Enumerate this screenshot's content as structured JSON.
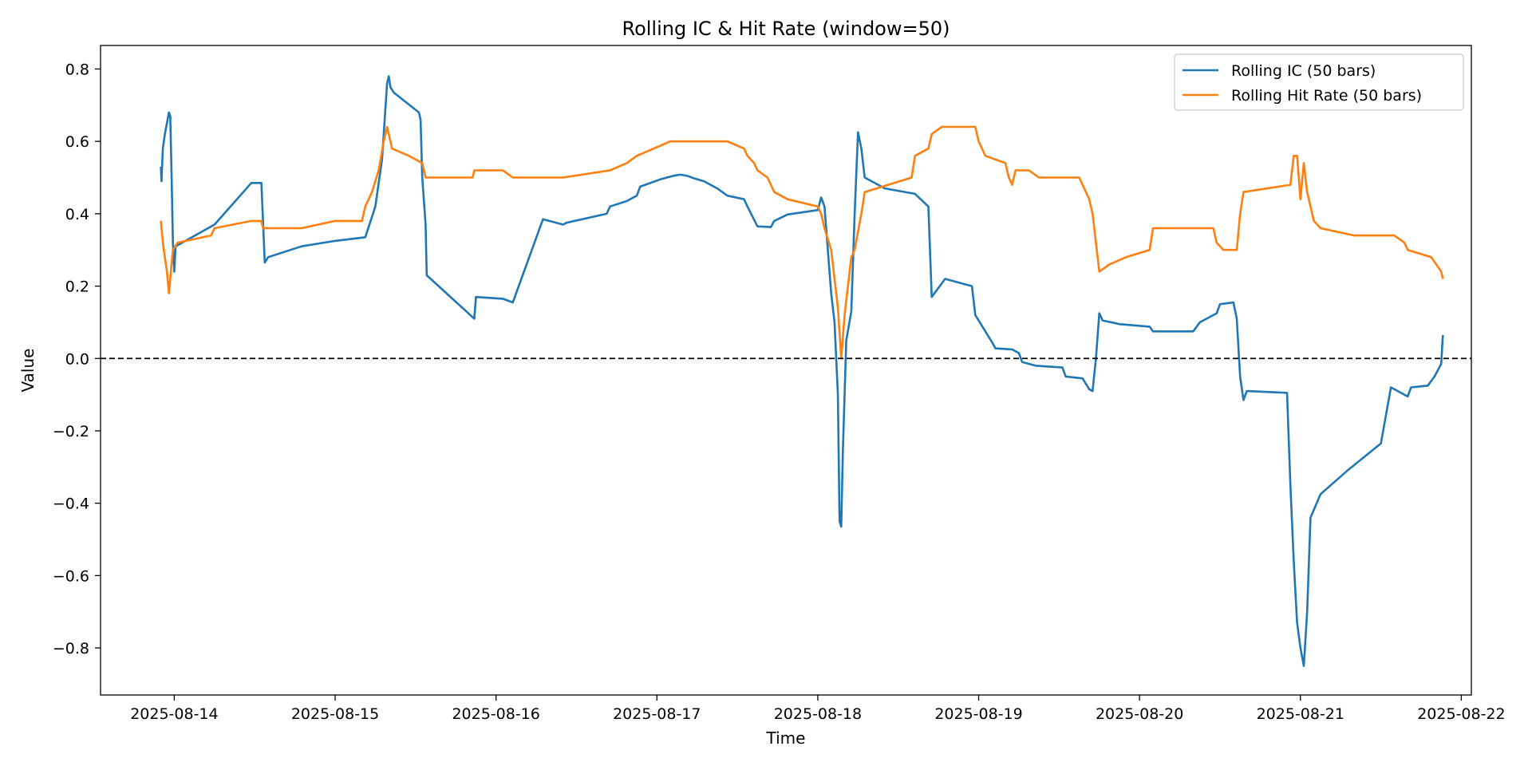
{
  "chart_data": {
    "type": "line",
    "title": "Rolling IC & Hit Rate (window=50)",
    "xlabel": "Time",
    "ylabel": "Value",
    "x_range": [
      "2025-08-13T13:00",
      "2025-08-22T01:30"
    ],
    "ylim": [
      -0.93,
      0.865
    ],
    "x_ticks": [
      "2025-08-14",
      "2025-08-15",
      "2025-08-16",
      "2025-08-17",
      "2025-08-18",
      "2025-08-19",
      "2025-08-20",
      "2025-08-21",
      "2025-08-22"
    ],
    "y_ticks": [
      -0.8,
      -0.6,
      -0.4,
      -0.2,
      0.0,
      0.2,
      0.4,
      0.6,
      0.8
    ],
    "y_tick_labels": [
      "−0.8",
      "−0.6",
      "−0.4",
      "−0.2",
      "0.0",
      "0.2",
      "0.4",
      "0.6",
      "0.8"
    ],
    "grid": false,
    "legend_position": "top-right",
    "reference_line": {
      "y": 0,
      "style": "dashed",
      "color": "#000000"
    },
    "series": [
      {
        "name": "Rolling IC (50 bars)",
        "color": "#1f77b4",
        "points": [
          [
            "2025-08-13T22:00",
            0.53
          ],
          [
            "2025-08-13T22:06",
            0.49
          ],
          [
            "2025-08-13T22:18",
            0.58
          ],
          [
            "2025-08-13T22:36",
            0.62
          ],
          [
            "2025-08-13T23:00",
            0.66
          ],
          [
            "2025-08-13T23:12",
            0.68
          ],
          [
            "2025-08-13T23:24",
            0.67
          ],
          [
            "2025-08-13T23:36",
            0.5
          ],
          [
            "2025-08-13T23:48",
            0.32
          ],
          [
            "2025-08-14T00:00",
            0.24
          ],
          [
            "2025-08-14T00:12",
            0.31
          ],
          [
            "2025-08-14T06:00",
            0.37
          ],
          [
            "2025-08-14T11:30",
            0.485
          ],
          [
            "2025-08-14T13:00",
            0.485
          ],
          [
            "2025-08-14T13:30",
            0.265
          ],
          [
            "2025-08-14T14:00",
            0.28
          ],
          [
            "2025-08-14T19:00",
            0.31
          ],
          [
            "2025-08-15T00:00",
            0.325
          ],
          [
            "2025-08-15T04:30",
            0.335
          ],
          [
            "2025-08-15T06:00",
            0.42
          ],
          [
            "2025-08-15T07:00",
            0.55
          ],
          [
            "2025-08-15T07:45",
            0.76
          ],
          [
            "2025-08-15T08:00",
            0.78
          ],
          [
            "2025-08-15T08:15",
            0.75
          ],
          [
            "2025-08-15T08:45",
            0.735
          ],
          [
            "2025-08-15T12:30",
            0.68
          ],
          [
            "2025-08-15T12:45",
            0.66
          ],
          [
            "2025-08-15T13:00",
            0.5
          ],
          [
            "2025-08-15T13:30",
            0.37
          ],
          [
            "2025-08-15T13:40",
            0.23
          ],
          [
            "2025-08-15T20:45",
            0.11
          ],
          [
            "2025-08-15T21:00",
            0.17
          ],
          [
            "2025-08-16T01:00",
            0.165
          ],
          [
            "2025-08-16T02:30",
            0.155
          ],
          [
            "2025-08-16T07:00",
            0.385
          ],
          [
            "2025-08-16T10:00",
            0.37
          ],
          [
            "2025-08-16T10:30",
            0.375
          ],
          [
            "2025-08-16T16:30",
            0.4
          ],
          [
            "2025-08-16T17:00",
            0.42
          ],
          [
            "2025-08-16T19:30",
            0.435
          ],
          [
            "2025-08-16T21:00",
            0.45
          ],
          [
            "2025-08-16T21:30",
            0.475
          ],
          [
            "2025-08-17T00:30",
            0.495
          ],
          [
            "2025-08-17T02:30",
            0.505
          ],
          [
            "2025-08-17T03:30",
            0.508
          ],
          [
            "2025-08-17T04:30",
            0.505
          ],
          [
            "2025-08-17T05:30",
            0.498
          ],
          [
            "2025-08-17T07:00",
            0.49
          ],
          [
            "2025-08-17T09:00",
            0.47
          ],
          [
            "2025-08-17T10:30",
            0.45
          ],
          [
            "2025-08-17T13:00",
            0.44
          ],
          [
            "2025-08-17T13:30",
            0.42
          ],
          [
            "2025-08-17T15:00",
            0.365
          ],
          [
            "2025-08-17T17:00",
            0.363
          ],
          [
            "2025-08-17T17:30",
            0.38
          ],
          [
            "2025-08-17T19:30",
            0.398
          ],
          [
            "2025-08-18T00:00",
            0.41
          ],
          [
            "2025-08-18T00:30",
            0.445
          ],
          [
            "2025-08-18T01:00",
            0.42
          ],
          [
            "2025-08-18T01:30",
            0.3
          ],
          [
            "2025-08-18T02:00",
            0.18
          ],
          [
            "2025-08-18T02:30",
            0.1
          ],
          [
            "2025-08-18T03:00",
            -0.1
          ],
          [
            "2025-08-18T03:15",
            -0.45
          ],
          [
            "2025-08-18T03:30",
            -0.465
          ],
          [
            "2025-08-18T03:45",
            -0.25
          ],
          [
            "2025-08-18T04:15",
            0.05
          ],
          [
            "2025-08-18T05:00",
            0.13
          ],
          [
            "2025-08-18T05:30",
            0.4
          ],
          [
            "2025-08-18T06:00",
            0.625
          ],
          [
            "2025-08-18T06:30",
            0.58
          ],
          [
            "2025-08-18T07:00",
            0.5
          ],
          [
            "2025-08-18T10:00",
            0.47
          ],
          [
            "2025-08-18T14:30",
            0.455
          ],
          [
            "2025-08-18T16:30",
            0.42
          ],
          [
            "2025-08-18T17:00",
            0.17
          ],
          [
            "2025-08-18T19:00",
            0.22
          ],
          [
            "2025-08-18T23:00",
            0.2
          ],
          [
            "2025-08-18T23:30",
            0.12
          ],
          [
            "2025-08-19T01:00",
            0.075
          ],
          [
            "2025-08-19T02:00",
            0.045
          ],
          [
            "2025-08-19T02:30",
            0.028
          ],
          [
            "2025-08-19T05:00",
            0.025
          ],
          [
            "2025-08-19T06:00",
            0.015
          ],
          [
            "2025-08-19T06:30",
            -0.01
          ],
          [
            "2025-08-19T08:30",
            -0.02
          ],
          [
            "2025-08-19T12:30",
            -0.025
          ],
          [
            "2025-08-19T13:00",
            -0.05
          ],
          [
            "2025-08-19T15:30",
            -0.055
          ],
          [
            "2025-08-19T16:30",
            -0.085
          ],
          [
            "2025-08-19T17:00",
            -0.09
          ],
          [
            "2025-08-19T17:30",
            0.0
          ],
          [
            "2025-08-19T18:00",
            0.125
          ],
          [
            "2025-08-19T18:30",
            0.105
          ],
          [
            "2025-08-19T21:00",
            0.095
          ],
          [
            "2025-08-20T01:30",
            0.088
          ],
          [
            "2025-08-20T02:00",
            0.075
          ],
          [
            "2025-08-20T08:00",
            0.075
          ],
          [
            "2025-08-20T09:00",
            0.1
          ],
          [
            "2025-08-20T11:30",
            0.125
          ],
          [
            "2025-08-20T12:00",
            0.15
          ],
          [
            "2025-08-20T14:00",
            0.155
          ],
          [
            "2025-08-20T14:30",
            0.11
          ],
          [
            "2025-08-20T15:00",
            -0.05
          ],
          [
            "2025-08-20T15:30",
            -0.115
          ],
          [
            "2025-08-20T16:00",
            -0.09
          ],
          [
            "2025-08-20T22:00",
            -0.095
          ],
          [
            "2025-08-20T22:30",
            -0.35
          ],
          [
            "2025-08-20T23:00",
            -0.56
          ],
          [
            "2025-08-20T23:30",
            -0.73
          ],
          [
            "2025-08-21T00:00",
            -0.8
          ],
          [
            "2025-08-21T00:30",
            -0.85
          ],
          [
            "2025-08-21T01:00",
            -0.7
          ],
          [
            "2025-08-21T01:30",
            -0.44
          ],
          [
            "2025-08-21T03:00",
            -0.375
          ],
          [
            "2025-08-21T07:00",
            -0.31
          ],
          [
            "2025-08-21T12:00",
            -0.235
          ],
          [
            "2025-08-21T13:30",
            -0.08
          ],
          [
            "2025-08-21T16:00",
            -0.105
          ],
          [
            "2025-08-21T16:30",
            -0.08
          ],
          [
            "2025-08-21T19:00",
            -0.075
          ],
          [
            "2025-08-21T20:00",
            -0.05
          ],
          [
            "2025-08-21T21:00",
            -0.015
          ],
          [
            "2025-08-21T21:15",
            0.065
          ]
        ]
      },
      {
        "name": "Rolling Hit Rate (50 bars)",
        "color": "#ff7f0e",
        "points": [
          [
            "2025-08-13T22:00",
            0.38
          ],
          [
            "2025-08-13T22:18",
            0.32
          ],
          [
            "2025-08-13T22:36",
            0.28
          ],
          [
            "2025-08-13T22:54",
            0.24
          ],
          [
            "2025-08-13T23:12",
            0.18
          ],
          [
            "2025-08-13T23:30",
            0.24
          ],
          [
            "2025-08-13T23:48",
            0.3
          ],
          [
            "2025-08-14T00:30",
            0.32
          ],
          [
            "2025-08-14T05:30",
            0.34
          ],
          [
            "2025-08-14T06:00",
            0.36
          ],
          [
            "2025-08-14T11:30",
            0.38
          ],
          [
            "2025-08-14T13:00",
            0.38
          ],
          [
            "2025-08-14T13:15",
            0.36
          ],
          [
            "2025-08-14T19:00",
            0.36
          ],
          [
            "2025-08-15T00:00",
            0.38
          ],
          [
            "2025-08-15T04:00",
            0.38
          ],
          [
            "2025-08-15T04:30",
            0.42
          ],
          [
            "2025-08-15T05:30",
            0.46
          ],
          [
            "2025-08-15T06:30",
            0.52
          ],
          [
            "2025-08-15T07:15",
            0.6
          ],
          [
            "2025-08-15T07:45",
            0.64
          ],
          [
            "2025-08-15T08:00",
            0.62
          ],
          [
            "2025-08-15T08:30",
            0.58
          ],
          [
            "2025-08-15T11:00",
            0.56
          ],
          [
            "2025-08-15T13:00",
            0.54
          ],
          [
            "2025-08-15T13:30",
            0.5
          ],
          [
            "2025-08-15T20:30",
            0.5
          ],
          [
            "2025-08-15T20:45",
            0.52
          ],
          [
            "2025-08-16T01:00",
            0.52
          ],
          [
            "2025-08-16T02:30",
            0.5
          ],
          [
            "2025-08-16T10:00",
            0.5
          ],
          [
            "2025-08-16T17:00",
            0.52
          ],
          [
            "2025-08-16T19:30",
            0.54
          ],
          [
            "2025-08-16T21:00",
            0.56
          ],
          [
            "2025-08-17T02:00",
            0.6
          ],
          [
            "2025-08-17T10:30",
            0.6
          ],
          [
            "2025-08-17T13:00",
            0.58
          ],
          [
            "2025-08-17T13:30",
            0.56
          ],
          [
            "2025-08-17T14:30",
            0.54
          ],
          [
            "2025-08-17T15:00",
            0.52
          ],
          [
            "2025-08-17T16:30",
            0.5
          ],
          [
            "2025-08-17T17:30",
            0.46
          ],
          [
            "2025-08-17T19:30",
            0.44
          ],
          [
            "2025-08-18T00:00",
            0.42
          ],
          [
            "2025-08-18T00:30",
            0.4
          ],
          [
            "2025-08-18T01:00",
            0.36
          ],
          [
            "2025-08-18T02:00",
            0.3
          ],
          [
            "2025-08-18T02:30",
            0.22
          ],
          [
            "2025-08-18T03:00",
            0.14
          ],
          [
            "2025-08-18T03:30",
            0.0
          ],
          [
            "2025-08-18T04:00",
            0.12
          ],
          [
            "2025-08-18T05:00",
            0.28
          ],
          [
            "2025-08-18T05:30",
            0.3
          ],
          [
            "2025-08-18T06:30",
            0.4
          ],
          [
            "2025-08-18T07:00",
            0.46
          ],
          [
            "2025-08-18T14:00",
            0.5
          ],
          [
            "2025-08-18T14:30",
            0.56
          ],
          [
            "2025-08-18T16:30",
            0.58
          ],
          [
            "2025-08-18T17:00",
            0.62
          ],
          [
            "2025-08-18T18:30",
            0.64
          ],
          [
            "2025-08-18T23:30",
            0.64
          ],
          [
            "2025-08-19T00:00",
            0.6
          ],
          [
            "2025-08-19T01:00",
            0.56
          ],
          [
            "2025-08-19T04:00",
            0.54
          ],
          [
            "2025-08-19T04:30",
            0.5
          ],
          [
            "2025-08-19T05:00",
            0.48
          ],
          [
            "2025-08-19T05:30",
            0.52
          ],
          [
            "2025-08-19T07:30",
            0.52
          ],
          [
            "2025-08-19T09:00",
            0.5
          ],
          [
            "2025-08-19T15:00",
            0.5
          ],
          [
            "2025-08-19T15:30",
            0.48
          ],
          [
            "2025-08-19T16:30",
            0.44
          ],
          [
            "2025-08-19T17:00",
            0.4
          ],
          [
            "2025-08-19T18:00",
            0.24
          ],
          [
            "2025-08-19T19:30",
            0.26
          ],
          [
            "2025-08-19T22:00",
            0.28
          ],
          [
            "2025-08-20T01:30",
            0.3
          ],
          [
            "2025-08-20T02:00",
            0.36
          ],
          [
            "2025-08-20T11:00",
            0.36
          ],
          [
            "2025-08-20T11:30",
            0.32
          ],
          [
            "2025-08-20T12:30",
            0.3
          ],
          [
            "2025-08-20T14:30",
            0.3
          ],
          [
            "2025-08-20T15:00",
            0.4
          ],
          [
            "2025-08-20T15:30",
            0.46
          ],
          [
            "2025-08-20T22:30",
            0.48
          ],
          [
            "2025-08-20T23:00",
            0.56
          ],
          [
            "2025-08-20T23:30",
            0.56
          ],
          [
            "2025-08-21T00:00",
            0.44
          ],
          [
            "2025-08-21T00:30",
            0.54
          ],
          [
            "2025-08-21T01:00",
            0.46
          ],
          [
            "2025-08-21T02:00",
            0.38
          ],
          [
            "2025-08-21T03:00",
            0.36
          ],
          [
            "2025-08-21T08:00",
            0.34
          ],
          [
            "2025-08-21T14:00",
            0.34
          ],
          [
            "2025-08-21T15:30",
            0.32
          ],
          [
            "2025-08-21T16:00",
            0.3
          ],
          [
            "2025-08-21T19:30",
            0.28
          ],
          [
            "2025-08-21T21:00",
            0.24
          ],
          [
            "2025-08-21T21:15",
            0.22
          ]
        ]
      }
    ]
  }
}
